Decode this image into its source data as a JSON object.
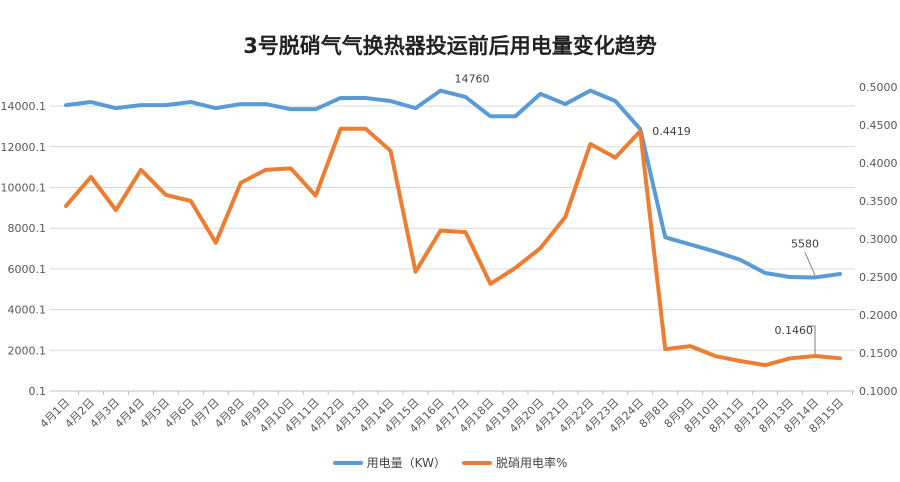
{
  "chart_data": {
    "type": "line",
    "title": "3号脱硝气气换热器投运前后用电量变化趋势",
    "categories": [
      "4月1日",
      "4月2日",
      "4月3日",
      "4月4日",
      "4月5日",
      "4月6日",
      "4月7日",
      "4月8日",
      "4月9日",
      "4月10日",
      "4月11日",
      "4月12日",
      "4月13日",
      "4月14日",
      "4月15日",
      "4月16日",
      "4月17日",
      "4月18日",
      "4月19日",
      "4月20日",
      "4月21日",
      "4月22日",
      "4月23日",
      "4月24日",
      "8月8日",
      "8月9日",
      "8月10日",
      "8月11日",
      "8月12日",
      "8月13日",
      "8月14日",
      "8月15日"
    ],
    "y_left": {
      "ticks": [
        "0.1",
        "2000.1",
        "4000.1",
        "6000.1",
        "8000.1",
        "10000.1",
        "12000.1",
        "14000.1"
      ],
      "ylim": [
        0.1,
        16000.1
      ]
    },
    "y_right": {
      "ticks": [
        "0.1000",
        "0.1500",
        "0.2000",
        "0.2500",
        "0.3000",
        "0.3500",
        "0.4000",
        "0.4500",
        "0.5000"
      ],
      "ylim": [
        0.1,
        0.5
      ]
    },
    "grid": true,
    "legend_position": "bottom",
    "series": [
      {
        "name": "用电量（KW）",
        "axis": "left",
        "color": "#5b9bd5",
        "values": [
          14050,
          14200,
          13900,
          14050,
          14050,
          14200,
          13900,
          14100,
          14100,
          13850,
          13850,
          14400,
          14400,
          14250,
          13900,
          14760,
          14450,
          13500,
          13500,
          14600,
          14100,
          14760,
          14250,
          12870,
          7550,
          7200,
          6850,
          6450,
          5800,
          5600,
          5580,
          5750
        ],
        "labels": [
          {
            "index": 15,
            "text": "14760"
          },
          {
            "index": 30,
            "text": "5580"
          }
        ]
      },
      {
        "name": "脱硝用电率%",
        "axis": "right",
        "color": "#ed7d31",
        "values": [
          0.3435,
          0.3816,
          0.338,
          0.391,
          0.358,
          0.35,
          0.295,
          0.374,
          0.391,
          0.393,
          0.357,
          0.445,
          0.445,
          0.416,
          0.257,
          0.311,
          0.309,
          0.241,
          0.262,
          0.288,
          0.329,
          0.425,
          0.407,
          0.4419,
          0.155,
          0.159,
          0.146,
          0.1395,
          0.134,
          0.143,
          0.146,
          0.143
        ],
        "labels": [
          {
            "index": 23,
            "text": "0.4419"
          },
          {
            "index": 30,
            "text": "0.1460"
          }
        ]
      }
    ]
  }
}
